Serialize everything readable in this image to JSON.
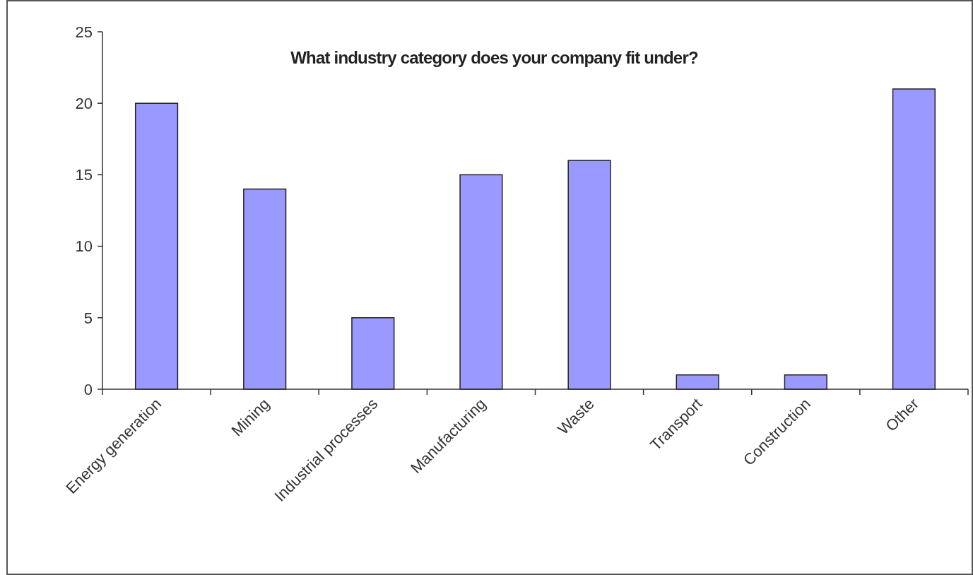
{
  "chart_data": {
    "type": "bar",
    "title": "What industry category does your company fit under?",
    "categories": [
      "Energy generation",
      "Mining",
      "Industrial processes",
      "Manufacturing",
      "Waste",
      "Transport",
      "Construction",
      "Other"
    ],
    "values": [
      20,
      14,
      5,
      15,
      16,
      1,
      1,
      21
    ],
    "color": "#9999ff",
    "ylim": [
      0,
      25
    ],
    "yticks": [
      0,
      5,
      10,
      15,
      20,
      25
    ],
    "grid": false
  }
}
